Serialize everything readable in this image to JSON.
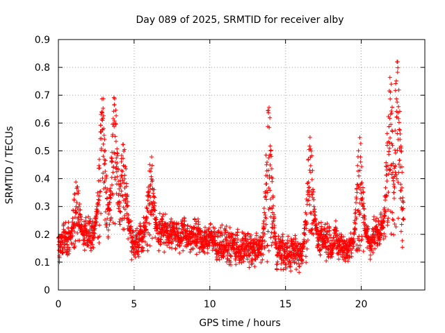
{
  "chart_data": {
    "type": "scatter",
    "title": "Day 089 of 2025, SRMTID for receiver alby",
    "xlabel": "GPS time / hours",
    "ylabel": "SRMTID / TECUs",
    "xlim": [
      0,
      24.2
    ],
    "ylim": [
      0,
      0.9
    ],
    "xticks": [
      0,
      5,
      10,
      15,
      20
    ],
    "yticks": [
      0,
      0.1,
      0.2,
      0.3,
      0.4,
      0.5,
      0.6,
      0.7,
      0.8,
      0.9
    ],
    "grid": true,
    "marker": "+",
    "series_color": "#ff0000",
    "x_range_hours": [
      0,
      22.8
    ],
    "sample_spacing_hours": 0.0085,
    "baseline_profile": [
      [
        0,
        0.15
      ],
      [
        1,
        0.18
      ],
      [
        2,
        0.2
      ],
      [
        3,
        0.25
      ],
      [
        4,
        0.24
      ],
      [
        5,
        0.18
      ],
      [
        6,
        0.2
      ],
      [
        7,
        0.22
      ],
      [
        8,
        0.2
      ],
      [
        9,
        0.19
      ],
      [
        10,
        0.18
      ],
      [
        11,
        0.16
      ],
      [
        12,
        0.15
      ],
      [
        13,
        0.14
      ],
      [
        14,
        0.15
      ],
      [
        15,
        0.13
      ],
      [
        16,
        0.13
      ],
      [
        17,
        0.2
      ],
      [
        18,
        0.18
      ],
      [
        19,
        0.15
      ],
      [
        20,
        0.17
      ],
      [
        21,
        0.2
      ],
      [
        22,
        0.25
      ],
      [
        22.8,
        0.22
      ]
    ],
    "spikes": [
      {
        "x": 1.2,
        "y": 0.39
      },
      {
        "x": 2.9,
        "y": 0.7
      },
      {
        "x": 3.7,
        "y": 0.68
      },
      {
        "x": 4.3,
        "y": 0.52
      },
      {
        "x": 6.1,
        "y": 0.48
      },
      {
        "x": 13.9,
        "y": 0.66
      },
      {
        "x": 16.6,
        "y": 0.56
      },
      {
        "x": 19.9,
        "y": 0.53
      },
      {
        "x": 21.9,
        "y": 0.76
      },
      {
        "x": 22.4,
        "y": 0.82
      }
    ],
    "min_value_approx": 0.05,
    "max_value_approx": 0.82
  }
}
